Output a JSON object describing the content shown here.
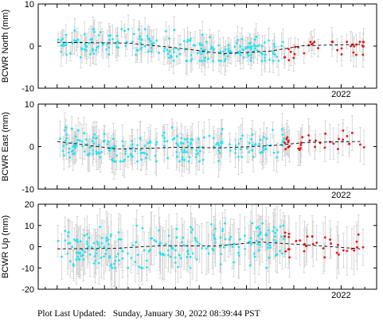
{
  "footer": {
    "updated_text": "Plot Last Updated:   Sunday, January 30, 2022 08:39:44 PST"
  },
  "colors": {
    "point_main": "#22e4f0",
    "point_recent": "#ee1111",
    "errorbar": "#cfcfcf",
    "trend": "#000000",
    "frame": "#000000"
  },
  "chart_data": [
    {
      "type": "scatter",
      "ylabel": "BCWR North (mm)",
      "ylim": [
        -10,
        10
      ],
      "yticks": [
        -10,
        0,
        10
      ],
      "xlim": [
        2015.6,
        2022.75
      ],
      "xtick_labels": [
        {
          "value": 2022.0,
          "label": "2022"
        }
      ],
      "grid": false,
      "trend": [
        [
          2016.0,
          0.9
        ],
        [
          2017.5,
          0.7
        ],
        [
          2018.5,
          -0.4
        ],
        [
          2019.5,
          -1.8
        ],
        [
          2020.5,
          -1.2
        ],
        [
          2021.2,
          0.1
        ],
        [
          2022.4,
          0.4
        ]
      ],
      "error_bar_typical": 2.5,
      "series": [
        {
          "role": "points",
          "approx_x_range": [
            2016.0,
            2020.8
          ],
          "approx_y_range": [
            -3.5,
            4.0
          ]
        },
        {
          "role": "recent",
          "approx_x_range": [
            2020.8,
            2022.5
          ],
          "approx_y_range": [
            -4.5,
            1.0
          ]
        }
      ]
    },
    {
      "type": "scatter",
      "ylabel": "BCWR East (mm)",
      "ylim": [
        -10,
        10
      ],
      "yticks": [
        -10,
        0,
        10
      ],
      "xlim": [
        2015.6,
        2022.75
      ],
      "xtick_labels": [
        {
          "value": 2022.0,
          "label": "2022"
        }
      ],
      "grid": false,
      "trend": [
        [
          2016.0,
          1.2
        ],
        [
          2017.3,
          -0.6
        ],
        [
          2018.5,
          -0.2
        ],
        [
          2019.5,
          -0.3
        ],
        [
          2020.5,
          0.2
        ],
        [
          2021.3,
          1.0
        ],
        [
          2022.4,
          1.2
        ]
      ],
      "error_bar_typical": 3.0,
      "series": [
        {
          "role": "points",
          "approx_x_range": [
            2016.0,
            2020.8
          ],
          "approx_y_range": [
            -3.5,
            4.5
          ]
        },
        {
          "role": "recent",
          "approx_x_range": [
            2020.8,
            2022.5
          ],
          "approx_y_range": [
            -1.0,
            4.5
          ]
        }
      ]
    },
    {
      "type": "scatter",
      "ylabel": "BCWR Up (mm)",
      "ylim": [
        -20,
        20
      ],
      "yticks": [
        -20,
        -10,
        0,
        10,
        20
      ],
      "xlim": [
        2015.6,
        2022.75
      ],
      "xtick_labels": [
        {
          "value": 2022.0,
          "label": "2022"
        }
      ],
      "grid": false,
      "trend": [
        [
          2016.0,
          -1.0
        ],
        [
          2017.2,
          -0.8
        ],
        [
          2018.2,
          0.5
        ],
        [
          2019.3,
          0.3
        ],
        [
          2020.3,
          2.2
        ],
        [
          2021.3,
          0.8
        ],
        [
          2022.4,
          -1.0
        ]
      ],
      "error_bar_typical": 9.0,
      "series": [
        {
          "role": "points",
          "approx_x_range": [
            2016.0,
            2020.8
          ],
          "approx_y_range": [
            -10.0,
            11.0
          ]
        },
        {
          "role": "recent",
          "approx_x_range": [
            2020.8,
            2022.5
          ],
          "approx_y_range": [
            -5.0,
            10.0
          ]
        }
      ]
    }
  ]
}
